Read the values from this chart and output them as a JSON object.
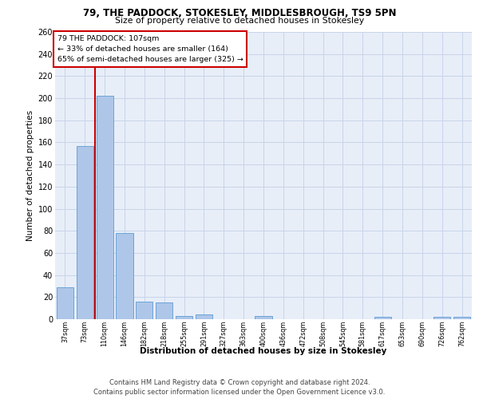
{
  "title1": "79, THE PADDOCK, STOKESLEY, MIDDLESBROUGH, TS9 5PN",
  "title2": "Size of property relative to detached houses in Stokesley",
  "xlabel": "Distribution of detached houses by size in Stokesley",
  "ylabel": "Number of detached properties",
  "bar_color": "#aec6e8",
  "bar_edge_color": "#5b9bd5",
  "grid_color": "#c8d4e8",
  "vline_color": "#cc0000",
  "vline_x": 1.5,
  "annotation_line1": "79 THE PADDOCK: 107sqm",
  "annotation_line2": "← 33% of detached houses are smaller (164)",
  "annotation_line3": "65% of semi-detached houses are larger (325) →",
  "annotation_box_color": "#ffffff",
  "annotation_box_edge": "#cc0000",
  "footer": "Contains HM Land Registry data © Crown copyright and database right 2024.\nContains public sector information licensed under the Open Government Licence v3.0.",
  "categories": [
    "37sqm",
    "73sqm",
    "110sqm",
    "146sqm",
    "182sqm",
    "218sqm",
    "255sqm",
    "291sqm",
    "327sqm",
    "363sqm",
    "400sqm",
    "436sqm",
    "472sqm",
    "508sqm",
    "545sqm",
    "581sqm",
    "617sqm",
    "653sqm",
    "690sqm",
    "726sqm",
    "762sqm"
  ],
  "values": [
    29,
    157,
    202,
    78,
    16,
    15,
    3,
    4,
    0,
    0,
    3,
    0,
    0,
    0,
    0,
    0,
    2,
    0,
    0,
    2,
    2
  ],
  "ylim": [
    0,
    260
  ],
  "yticks": [
    0,
    20,
    40,
    60,
    80,
    100,
    120,
    140,
    160,
    180,
    200,
    220,
    240,
    260
  ],
  "bg_color": "#e8eef8"
}
